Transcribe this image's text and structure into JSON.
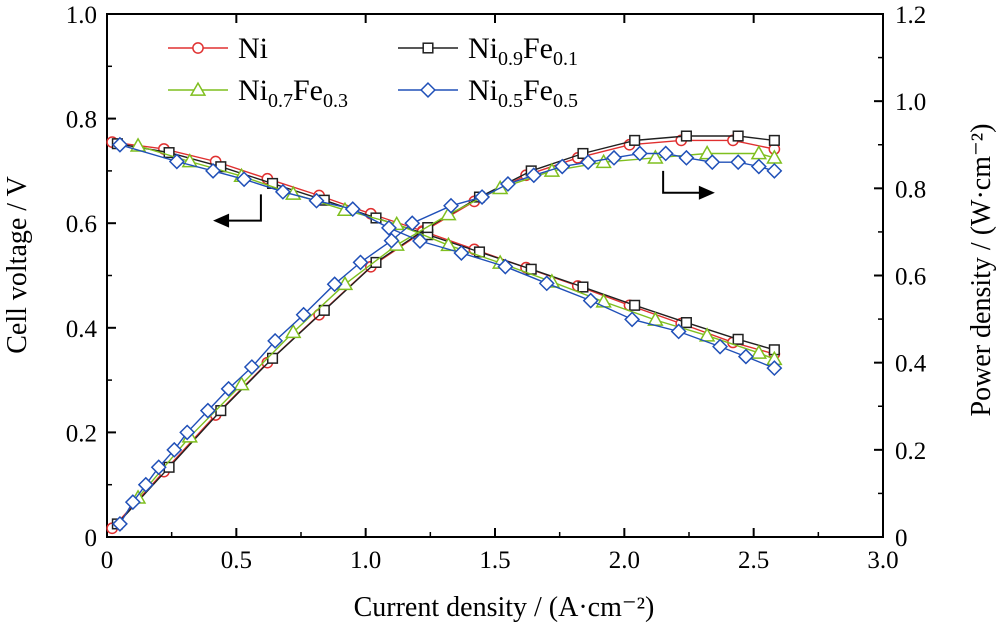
{
  "chart_data": {
    "type": "line",
    "xlabel": "Current density / (A·cm⁻²)",
    "ylabel": "Cell voltage / V",
    "y2label": "Power density / (W·cm⁻²)",
    "xlim": [
      0,
      3.0
    ],
    "ylim": [
      0,
      1.0
    ],
    "y2lim": [
      0,
      1.2
    ],
    "x_ticks": [
      "0",
      "0.5",
      "1.0",
      "1.5",
      "2.0",
      "2.5",
      "3.0"
    ],
    "y_ticks": [
      "0",
      "0.2",
      "0.4",
      "0.6",
      "0.8",
      "1.0"
    ],
    "y2_ticks": [
      "0",
      "0.2",
      "0.4",
      "0.6",
      "0.8",
      "1.0",
      "1.2"
    ],
    "grid": false,
    "legend": {
      "position": "top-left",
      "entries": [
        {
          "base": "Ni",
          "s1": "",
          "mid": "",
          "s2": ""
        },
        {
          "base": "Ni",
          "s1": "0.9",
          "mid": "Fe",
          "s2": "0.1"
        },
        {
          "base": "Ni",
          "s1": "0.7",
          "mid": "Fe",
          "s2": "0.3"
        },
        {
          "base": "Ni",
          "s1": "0.5",
          "mid": "Fe",
          "s2": "0.5"
        }
      ]
    },
    "series": [
      {
        "name": "Ni",
        "color": "#e03030",
        "marker": "circle",
        "axis_group": "Ni",
        "voltage": {
          "x": [
            0.02,
            0.22,
            0.42,
            0.62,
            0.82,
            1.02,
            1.22,
            1.42,
            1.62,
            1.82,
            2.02,
            2.22,
            2.42,
            2.58
          ],
          "y": [
            0.755,
            0.742,
            0.718,
            0.685,
            0.653,
            0.618,
            0.585,
            0.55,
            0.515,
            0.48,
            0.443,
            0.408,
            0.372,
            0.35
          ]
        },
        "power": {
          "x": [
            0.02,
            0.22,
            0.42,
            0.62,
            0.82,
            1.02,
            1.22,
            1.42,
            1.62,
            1.82,
            2.02,
            2.22,
            2.42,
            2.58
          ],
          "y": [
            0.02,
            0.15,
            0.28,
            0.4,
            0.51,
            0.62,
            0.7,
            0.77,
            0.83,
            0.87,
            0.9,
            0.91,
            0.91,
            0.89
          ]
        }
      },
      {
        "name": "Ni0.9Fe0.1",
        "color": "#202020",
        "marker": "square",
        "axis_group": "NiFe",
        "voltage": {
          "x": [
            0.04,
            0.24,
            0.44,
            0.64,
            0.84,
            1.04,
            1.24,
            1.44,
            1.64,
            1.84,
            2.04,
            2.24,
            2.44,
            2.58
          ],
          "y": [
            0.752,
            0.735,
            0.708,
            0.676,
            0.644,
            0.61,
            0.578,
            0.545,
            0.512,
            0.478,
            0.443,
            0.41,
            0.378,
            0.358
          ]
        },
        "power": {
          "x": [
            0.04,
            0.24,
            0.44,
            0.64,
            0.84,
            1.04,
            1.24,
            1.44,
            1.64,
            1.84,
            2.04,
            2.24,
            2.44,
            2.58
          ],
          "y": [
            0.03,
            0.16,
            0.29,
            0.41,
            0.52,
            0.63,
            0.71,
            0.78,
            0.84,
            0.88,
            0.91,
            0.92,
            0.92,
            0.91
          ]
        }
      },
      {
        "name": "Ni0.7Fe0.3",
        "color": "#7fbf1f",
        "marker": "triangle",
        "axis_group": "NiFe",
        "voltage": {
          "x": [
            0.12,
            0.32,
            0.52,
            0.72,
            0.92,
            1.12,
            1.32,
            1.52,
            1.72,
            1.92,
            2.12,
            2.32,
            2.52,
            2.58
          ],
          "y": [
            0.748,
            0.718,
            0.69,
            0.656,
            0.625,
            0.598,
            0.558,
            0.524,
            0.488,
            0.45,
            0.415,
            0.385,
            0.352,
            0.34
          ]
        },
        "power": {
          "x": [
            0.12,
            0.32,
            0.52,
            0.72,
            0.92,
            1.12,
            1.32,
            1.52,
            1.72,
            1.92,
            2.12,
            2.32,
            2.52,
            2.58
          ],
          "y": [
            0.09,
            0.23,
            0.35,
            0.47,
            0.58,
            0.67,
            0.74,
            0.8,
            0.84,
            0.86,
            0.87,
            0.88,
            0.88,
            0.87
          ]
        }
      },
      {
        "name": "Ni0.5Fe0.5",
        "color": "#2050b8",
        "marker": "diamond",
        "axis_group": "NiFe",
        "voltage": {
          "x": [
            0.05,
            0.27,
            0.41,
            0.53,
            0.68,
            0.81,
            0.95,
            1.09,
            1.21,
            1.37,
            1.54,
            1.7,
            1.87,
            2.03,
            2.21,
            2.37,
            2.47,
            2.58
          ],
          "y": [
            0.75,
            0.718,
            0.7,
            0.684,
            0.66,
            0.643,
            0.627,
            0.591,
            0.566,
            0.543,
            0.517,
            0.485,
            0.452,
            0.416,
            0.393,
            0.364,
            0.345,
            0.323
          ]
        },
        "power": {
          "x": [
            0.05,
            0.1,
            0.15,
            0.2,
            0.26,
            0.31,
            0.39,
            0.47,
            0.56,
            0.65,
            0.76,
            0.88,
            0.98,
            1.1,
            1.18,
            1.33,
            1.45,
            1.55,
            1.65,
            1.76,
            1.86,
            1.96,
            2.06,
            2.16,
            2.24,
            2.34,
            2.44,
            2.52,
            2.58
          ],
          "y": [
            0.03,
            0.08,
            0.12,
            0.16,
            0.2,
            0.24,
            0.29,
            0.34,
            0.39,
            0.45,
            0.51,
            0.58,
            0.63,
            0.68,
            0.72,
            0.76,
            0.78,
            0.81,
            0.83,
            0.85,
            0.86,
            0.87,
            0.88,
            0.88,
            0.87,
            0.86,
            0.86,
            0.85,
            0.84
          ]
        }
      }
    ],
    "annotations": [
      {
        "label": "voltage-axis-arrow",
        "points_to": "left",
        "at_x": 0.6,
        "at_y": 0.64
      },
      {
        "label": "power-axis-arrow",
        "points_to": "right",
        "at_x": 2.15,
        "at_y": 0.82
      }
    ]
  }
}
